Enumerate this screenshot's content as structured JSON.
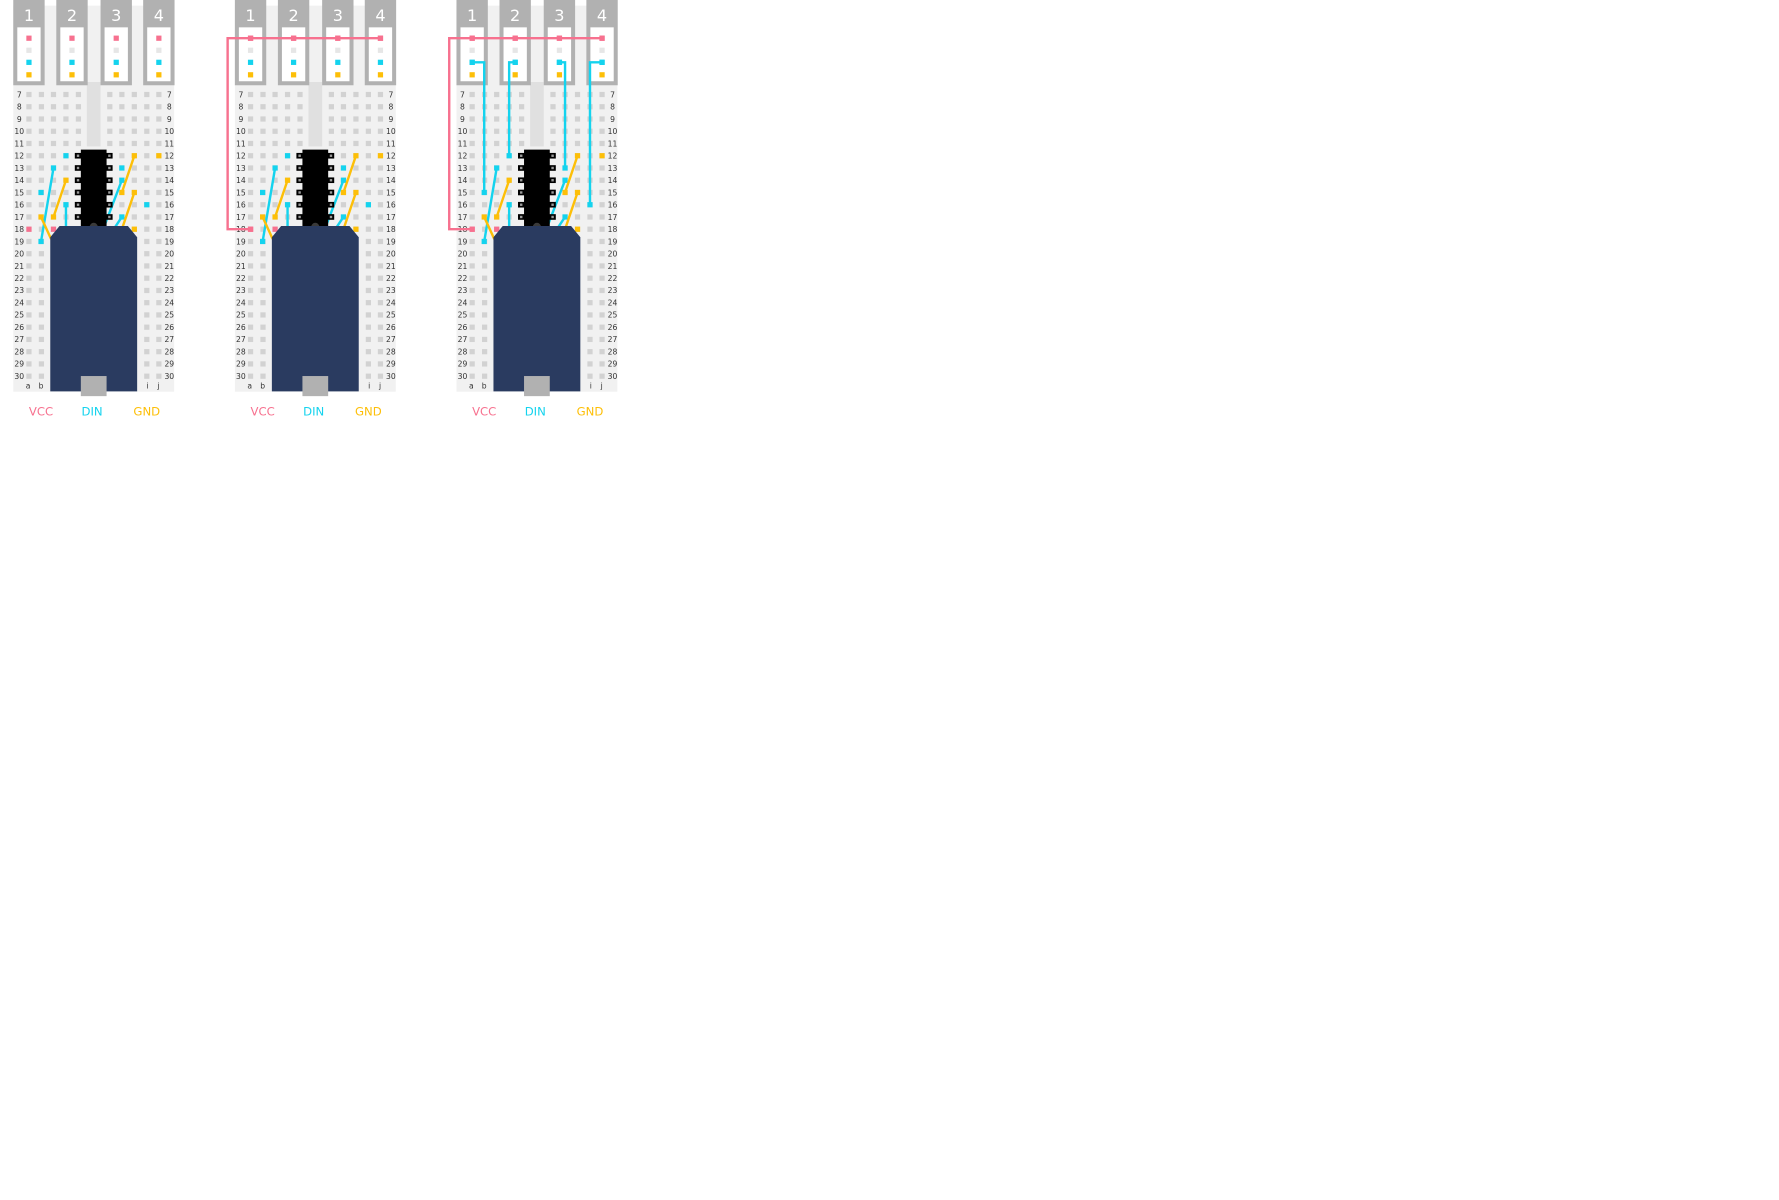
{
  "colors": {
    "vcc": "#f7718f",
    "din": "#14d3ee",
    "gnd": "#fdbf08",
    "header": "#b1b1b1",
    "board": "#f1f1f1",
    "hole": "#d2d2d2",
    "module": "#2a3b60",
    "chip": "#000000",
    "usb": "#b1b1b1"
  },
  "connectors": [
    "1",
    "2",
    "3",
    "4"
  ],
  "rows": [
    "7",
    "8",
    "9",
    "10",
    "11",
    "12",
    "13",
    "14",
    "15",
    "16",
    "17",
    "18",
    "19",
    "20",
    "21",
    "22",
    "23",
    "24",
    "25",
    "26",
    "27",
    "28",
    "29",
    "30"
  ],
  "columns_left": [
    "a",
    "b"
  ],
  "columns_right": [
    "i",
    "j"
  ],
  "signals": [
    {
      "key": "vcc",
      "label": "VCC"
    },
    {
      "key": "din",
      "label": "DIN"
    },
    {
      "key": "gnd",
      "label": "GND"
    }
  ],
  "panels": [
    {
      "name": "panel-step-1",
      "vcc_bus": false,
      "din_wires": false
    },
    {
      "name": "panel-step-2",
      "vcc_bus": true,
      "din_wires": false
    },
    {
      "name": "panel-step-3",
      "vcc_bus": true,
      "din_wires": true
    }
  ]
}
